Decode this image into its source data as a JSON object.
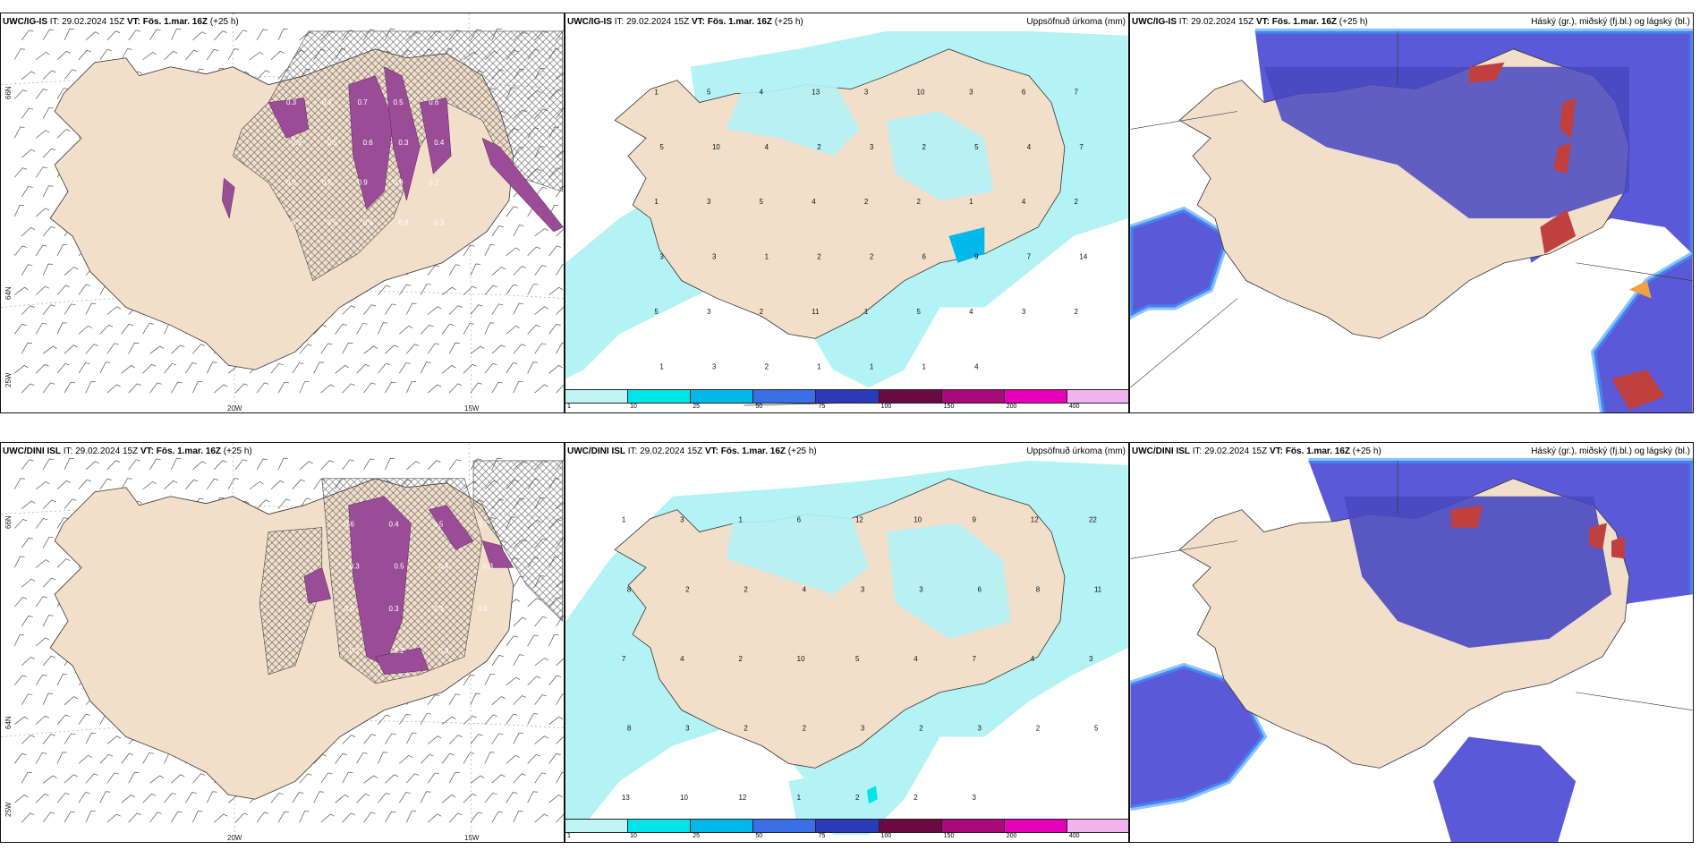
{
  "rows": [
    {
      "model": "UWC/IG-IS",
      "it_label": "IT: 29.02.2024 15Z",
      "vt_label": "VT: Fös. 1.mar. 16Z",
      "lead": "(+25 h)",
      "panel1": {
        "lon_labels": [
          "20W",
          "15W"
        ],
        "lat_labels": [
          "66N",
          "64N",
          "25W"
        ],
        "values": [
          "0.3",
          "0.3",
          "0.7",
          "0.5",
          "0.6",
          "0.9",
          "0.5",
          "0.6",
          "0.3",
          "0.4",
          "0.3",
          "0.5",
          "0.9",
          "0.9",
          "0.2",
          "0.3",
          "0.5",
          "0.6",
          "0.8",
          "0.3"
        ]
      },
      "panel2": {
        "right_title": "Uppsöfnuð úrkoma (mm)",
        "values": [
          "1",
          "5",
          "4",
          "13",
          "3",
          "10",
          "3",
          "6",
          "7",
          "5",
          "10",
          "4",
          "2",
          "3",
          "2",
          "5",
          "4",
          "7",
          "1",
          "3",
          "5",
          "4",
          "2",
          "2",
          "1",
          "4",
          "2",
          "3",
          "3",
          "1",
          "2",
          "2",
          "6",
          "9",
          "7",
          "14",
          "5",
          "3",
          "2",
          "11",
          "1",
          "5",
          "4",
          "3",
          "2",
          "1",
          "3",
          "2",
          "1",
          "1",
          "1",
          "4"
        ]
      },
      "panel3": {
        "right_title": "Háský (gr.), miðský (fj.bl.) og lágský (bl.)"
      }
    },
    {
      "model": "UWC/DINI ISL",
      "it_label": "IT: 29.02.2024 15Z",
      "vt_label": "VT: Fös. 1.mar. 16Z",
      "lead": "(+25 h)",
      "panel1": {
        "lon_labels": [
          "20W",
          "15W"
        ],
        "lat_labels": [
          "66N",
          "64N",
          "25W"
        ],
        "values": [
          "0.6",
          "0.4",
          "0.5",
          "0.7",
          "0.3",
          "0.5",
          "0.4",
          "0.3",
          "0.6",
          "0.3",
          "0.3",
          "0.6",
          "0.2",
          "0.2",
          "0.3"
        ]
      },
      "panel2": {
        "right_title": "Uppsöfnuð úrkoma (mm)",
        "values": [
          "1",
          "3",
          "1",
          "6",
          "12",
          "10",
          "9",
          "12",
          "22",
          "8",
          "2",
          "2",
          "4",
          "3",
          "3",
          "6",
          "8",
          "11",
          "7",
          "4",
          "2",
          "10",
          "5",
          "4",
          "7",
          "4",
          "3",
          "8",
          "3",
          "2",
          "2",
          "3",
          "2",
          "3",
          "2",
          "5",
          "13",
          "10",
          "12",
          "1",
          "2",
          "2",
          "3"
        ]
      },
      "panel3": {
        "right_title": "Háský (gr.), miðský (fj.bl.) og lágský (bl.)"
      }
    }
  ],
  "colorbar": {
    "ticks": [
      "1",
      "10",
      "25",
      "50",
      "75",
      "100",
      "150",
      "200",
      "400"
    ],
    "colors": [
      "#bff5f5",
      "#00e5ea",
      "#00b8ea",
      "#3a6fe6",
      "#2b3bb8",
      "#6a0a45",
      "#a80a7a",
      "#e600b8",
      "#f3b3f0"
    ]
  },
  "colors": {
    "land": "#f1dfca",
    "precip_light": "#b3f2f5",
    "cloud_low": "#5a5ad8",
    "cloud_high": "#c04040",
    "wind_sleet": "#9a4d96"
  }
}
